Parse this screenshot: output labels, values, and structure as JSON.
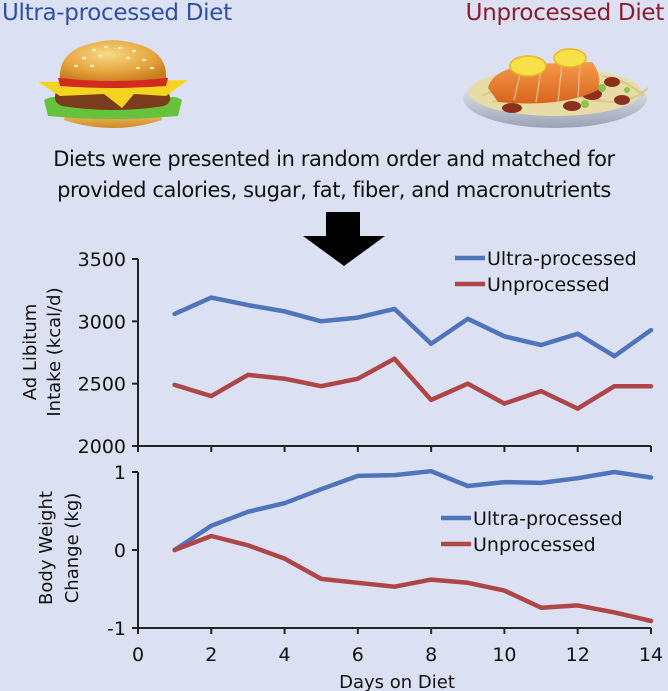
{
  "header": {
    "left_title": "Ultra-processed Diet",
    "right_title": "Unprocessed Diet",
    "left_image": "hamburger-illustration",
    "right_image": "salmon-pasta-plate-illustration",
    "caption_line1": "Diets were presented in random order and matched for",
    "caption_line2": "provided calories, sugar, fat, fiber, and macronutrients",
    "arrow_icon": "down-arrow"
  },
  "colors": {
    "background": "#dbe1f2",
    "ultra": "#4f74bc",
    "unprocessed": "#b04548",
    "left_title": "#2e4fa5",
    "right_title": "#8b1c2e",
    "axis": "#222222"
  },
  "chart_data": [
    {
      "type": "line",
      "title": "",
      "xlabel": "",
      "ylabel": "Ad Libitum Intake (kcal/d)",
      "ylabel_lines": [
        "Ad Libitum",
        "Intake (kcal/d)"
      ],
      "x": [
        1,
        2,
        3,
        4,
        5,
        6,
        7,
        8,
        9,
        10,
        11,
        12,
        13,
        14
      ],
      "xlim": [
        0,
        14
      ],
      "ylim": [
        2000,
        3500
      ],
      "yticks": [
        2000,
        2500,
        3000,
        3500
      ],
      "ytick_labels": [
        "2000",
        "2500",
        "3000",
        "3500"
      ],
      "xticks": [
        0,
        2,
        4,
        6,
        8,
        10,
        12,
        14
      ],
      "grid": false,
      "legend": "top-right",
      "series": [
        {
          "name": "Ultra-processed",
          "color": "#4f74bc",
          "values": [
            3060,
            3190,
            3130,
            3080,
            3000,
            3030,
            3100,
            2820,
            3020,
            2880,
            2810,
            2900,
            2720,
            2930
          ]
        },
        {
          "name": "Unprocessed",
          "color": "#b04548",
          "values": [
            2490,
            2400,
            2570,
            2540,
            2480,
            2540,
            2700,
            2370,
            2500,
            2340,
            2440,
            2300,
            2480,
            2480
          ]
        }
      ]
    },
    {
      "type": "line",
      "title": "",
      "xlabel": "Days on Diet",
      "ylabel": "Body Weight Change (kg)",
      "ylabel_lines": [
        "Body Weight",
        "Change (kg)"
      ],
      "x": [
        1,
        2,
        3,
        4,
        5,
        6,
        7,
        8,
        9,
        10,
        11,
        12,
        13,
        14
      ],
      "xlim": [
        0,
        14
      ],
      "ylim": [
        -1,
        1
      ],
      "yticks": [
        -1,
        0,
        1
      ],
      "ytick_labels": [
        "-1",
        "0",
        "1"
      ],
      "xticks": [
        0,
        2,
        4,
        6,
        8,
        10,
        12,
        14
      ],
      "xtick_labels": [
        "0",
        "2",
        "4",
        "6",
        "8",
        "10",
        "12",
        "14"
      ],
      "grid": false,
      "legend": "center-right",
      "series": [
        {
          "name": "Ultra-processed",
          "color": "#4f74bc",
          "values": [
            0,
            0.31,
            0.49,
            0.6,
            0.78,
            0.95,
            0.96,
            1.01,
            0.82,
            0.87,
            0.86,
            0.92,
            1.0,
            0.93
          ]
        },
        {
          "name": "Unprocessed",
          "color": "#b04548",
          "values": [
            0,
            0.18,
            0.06,
            -0.11,
            -0.37,
            -0.42,
            -0.47,
            -0.38,
            -0.42,
            -0.52,
            -0.74,
            -0.71,
            -0.8,
            -0.91
          ]
        }
      ]
    }
  ]
}
